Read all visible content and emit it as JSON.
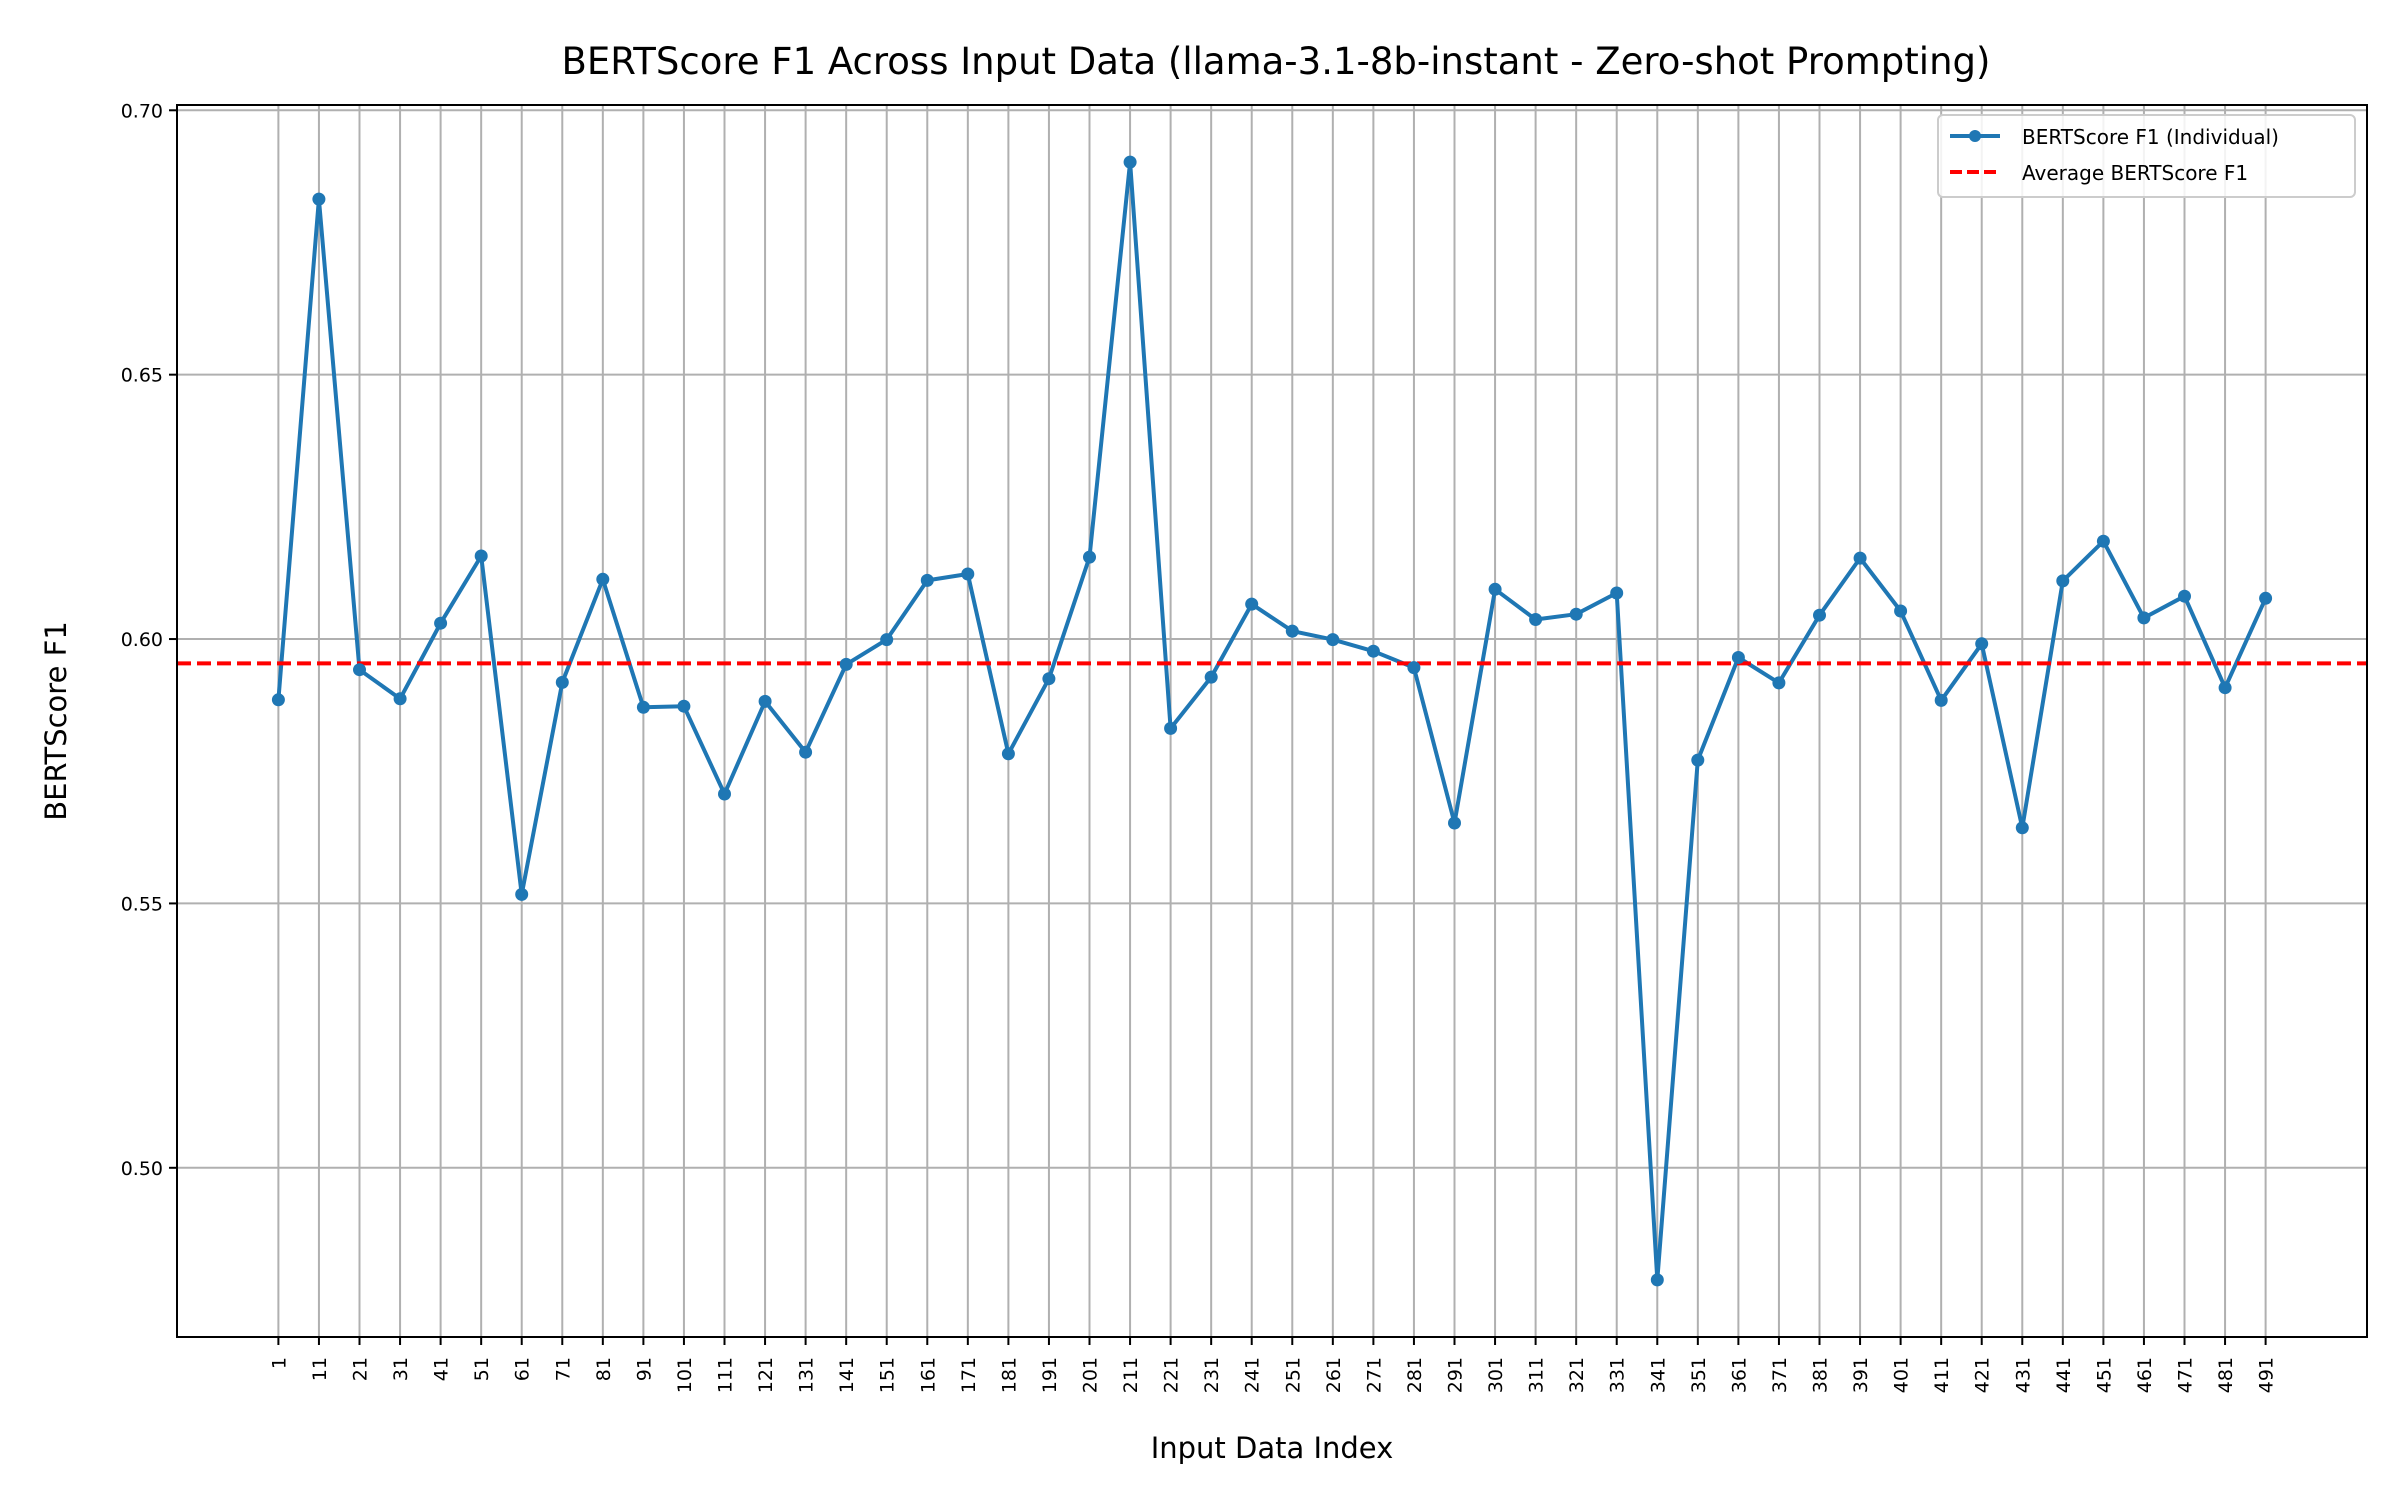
{
  "chart_data": {
    "type": "line",
    "title": "BERTScore F1 Across Input Data (llama-3.1-8b-instant - Zero-shot Prompting)",
    "xlabel": "Input Data Index",
    "ylabel": "BERTScore F1",
    "x": [
      1,
      11,
      21,
      31,
      41,
      51,
      61,
      71,
      81,
      91,
      101,
      111,
      121,
      131,
      141,
      151,
      161,
      171,
      181,
      191,
      201,
      211,
      221,
      231,
      241,
      251,
      261,
      271,
      281,
      291,
      301,
      311,
      321,
      331,
      341,
      351,
      361,
      371,
      381,
      391,
      401,
      411,
      421,
      431,
      441,
      451,
      461,
      471,
      481,
      491
    ],
    "xticks": [
      "1",
      "11",
      "21",
      "31",
      "41",
      "51",
      "61",
      "71",
      "81",
      "91",
      "101",
      "111",
      "121",
      "131",
      "141",
      "151",
      "161",
      "171",
      "181",
      "191",
      "201",
      "211",
      "221",
      "231",
      "241",
      "251",
      "261",
      "271",
      "281",
      "291",
      "301",
      "311",
      "321",
      "331",
      "341",
      "351",
      "361",
      "371",
      "381",
      "391",
      "401",
      "411",
      "421",
      "431",
      "441",
      "451",
      "461",
      "471",
      "481",
      "491"
    ],
    "yticks": [
      "0.50",
      "0.55",
      "0.60",
      "0.65",
      "0.70"
    ],
    "ytick_values": [
      0.5,
      0.55,
      0.6,
      0.65,
      0.7
    ],
    "xlim": [
      -24,
      516
    ],
    "ylim": [
      0.468,
      0.701
    ],
    "grid": true,
    "legend_position": "top-right",
    "series": [
      {
        "name": "BERTScore F1 (Individual)",
        "color": "#1f77b4",
        "style": "solid-marker",
        "values": [
          0.5885,
          0.6832,
          0.5942,
          0.5887,
          0.603,
          0.6157,
          0.5517,
          0.5918,
          0.6113,
          0.5871,
          0.5873,
          0.5707,
          0.5882,
          0.5786,
          0.5952,
          0.5999,
          0.6111,
          0.6123,
          0.5783,
          0.5925,
          0.6155,
          0.6902,
          0.5831,
          0.5928,
          0.6066,
          0.6015,
          0.5999,
          0.5977,
          0.5946,
          0.5652,
          0.6094,
          0.6037,
          0.6047,
          0.6087,
          0.4788,
          0.5771,
          0.5965,
          0.5917,
          0.6045,
          0.6153,
          0.6053,
          0.5884,
          0.5991,
          0.5643,
          0.611,
          0.6185,
          0.604,
          0.6081,
          0.5908,
          0.6077
        ]
      },
      {
        "name": "Average BERTScore F1",
        "color": "#ff0000",
        "style": "dashed",
        "constant": 0.5954
      }
    ]
  }
}
